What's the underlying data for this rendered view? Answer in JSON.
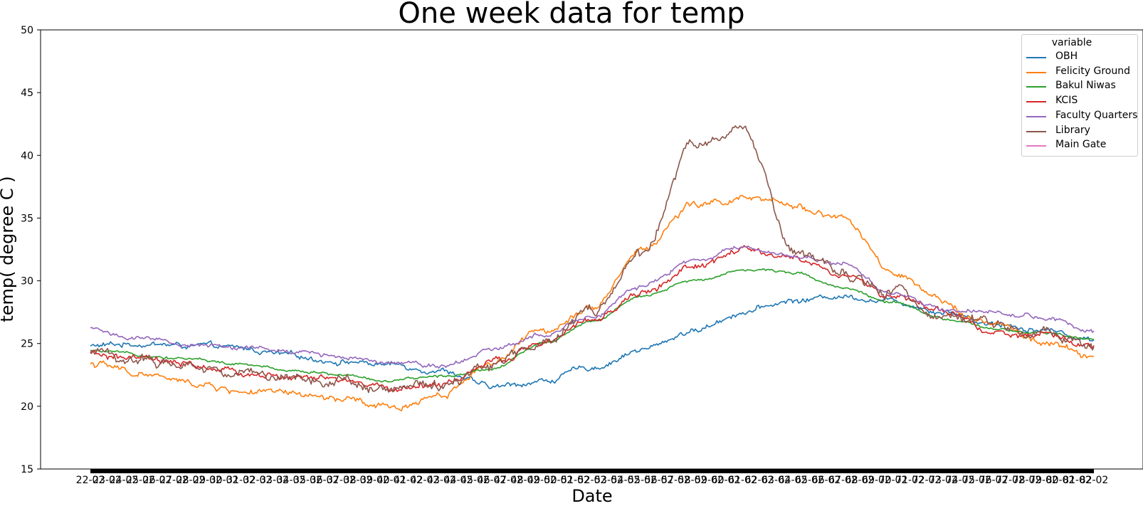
{
  "chart_data": {
    "type": "line",
    "title": "One week data for temp",
    "xlabel": "Date",
    "ylabel": "temp( degree C )",
    "ylim": [
      15,
      50
    ],
    "yticks": [
      15,
      20,
      25,
      30,
      35,
      40,
      45,
      50
    ],
    "x_tick_labels": [
      "22-02",
      "23-02",
      "24-02",
      "25-02",
      "26-02",
      "27-02",
      "28-02",
      "29-02",
      "30-02",
      "31-02",
      "32-02",
      "33-02",
      "34-02",
      "35-02",
      "36-02",
      "37-02",
      "38-02",
      "39-02",
      "40-02",
      "41-02",
      "42-02",
      "43-02",
      "44-02",
      "45-02",
      "46-02",
      "47-02",
      "48-02",
      "49-02",
      "50-02",
      "51-02",
      "52-02",
      "53-02",
      "54-02",
      "55-02",
      "56-02",
      "57-02",
      "58-02",
      "59-02",
      "60-02",
      "61-02",
      "62-02",
      "63-02",
      "64-02",
      "65-02",
      "66-02",
      "67-02",
      "68-02",
      "69-02",
      "70-02",
      "71-02",
      "72-02",
      "73-02",
      "74-02",
      "75-02",
      "76-02",
      "77-02",
      "78-02",
      "79-02",
      "80-02",
      "81-02",
      "82-02"
    ],
    "legend": {
      "title": "variable",
      "placement": "top-right"
    },
    "x_samples": [
      0,
      0.05,
      0.1,
      0.15,
      0.2,
      0.25,
      0.3,
      0.35,
      0.4,
      0.45,
      0.5,
      0.55,
      0.6,
      0.65,
      0.7,
      0.75,
      0.8,
      0.85,
      0.9,
      0.95,
      1.0
    ],
    "series": [
      {
        "name": "OBH",
        "color": "#1f77b4",
        "noise": 0.25,
        "values": [
          24.8,
          25.0,
          24.8,
          24.6,
          24.0,
          23.6,
          23.3,
          22.9,
          21.5,
          22.0,
          23.1,
          24.5,
          26.0,
          27.5,
          28.4,
          28.8,
          28.4,
          27.6,
          26.6,
          26.1,
          25.3
        ]
      },
      {
        "name": "Felicity Ground",
        "color": "#ff7f0e",
        "noise": 0.3,
        "values": [
          23.4,
          22.6,
          21.8,
          21.2,
          20.9,
          20.5,
          19.8,
          21.0,
          23.5,
          26.0,
          28.0,
          32.5,
          36.0,
          36.5,
          36.0,
          35.0,
          30.5,
          28.2,
          26.5,
          25.0,
          24.0
        ]
      },
      {
        "name": "Bakul Niwas",
        "color": "#2ca02c",
        "noise": 0.12,
        "values": [
          24.4,
          24.1,
          23.8,
          23.3,
          22.9,
          22.5,
          22.0,
          22.4,
          23.0,
          25.0,
          26.8,
          28.7,
          30.0,
          30.9,
          30.7,
          29.5,
          28.2,
          27.0,
          26.1,
          25.8,
          25.3
        ]
      },
      {
        "name": "KCIS",
        "color": "#d62728",
        "noise": 0.3,
        "values": [
          24.1,
          23.7,
          23.2,
          22.6,
          22.3,
          22.0,
          21.4,
          21.8,
          23.4,
          25.0,
          26.8,
          29.0,
          31.0,
          32.4,
          31.8,
          30.5,
          28.7,
          27.5,
          26.0,
          25.5,
          24.9
        ]
      },
      {
        "name": "Faculty Quarters",
        "color": "#9467bd",
        "noise": 0.2,
        "values": [
          26.2,
          25.3,
          24.9,
          24.7,
          24.3,
          24.0,
          23.6,
          23.3,
          24.5,
          25.8,
          27.2,
          29.5,
          31.6,
          32.6,
          32.0,
          31.3,
          29.0,
          27.8,
          27.5,
          27.1,
          25.9
        ]
      },
      {
        "name": "Library",
        "color": "#8c564b",
        "noise": 0.45,
        "values": [
          24.2,
          23.7,
          23.3,
          22.6,
          22.4,
          22.0,
          21.4,
          21.6,
          23.5,
          25.2,
          27.6,
          32.0,
          40.8,
          42.0,
          32.5,
          30.2,
          29.0,
          27.4,
          26.5,
          25.8,
          24.8
        ]
      },
      {
        "name": "Main Gate",
        "color": "#e377c2",
        "noise": 0,
        "values": []
      }
    ]
  }
}
